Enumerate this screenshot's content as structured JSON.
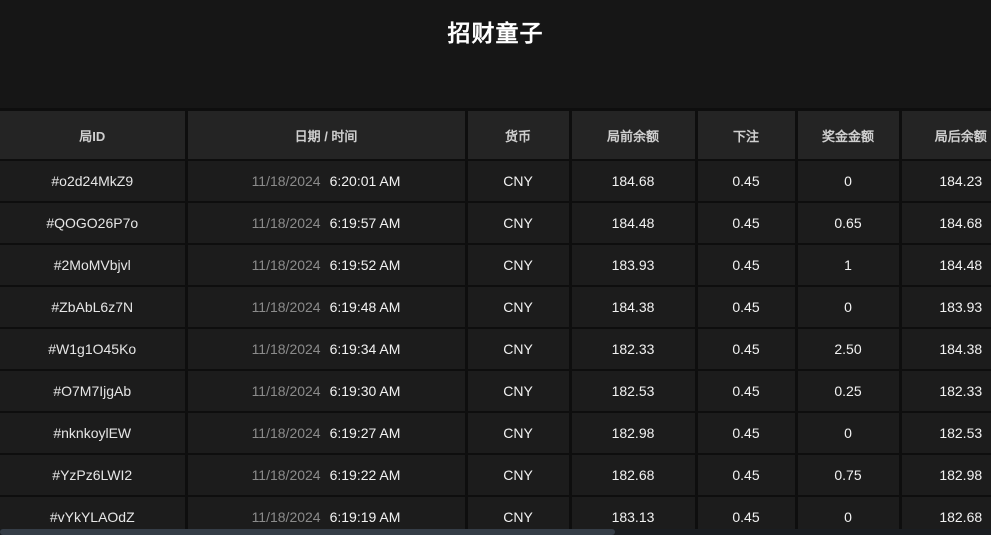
{
  "title": "招财童子",
  "table": {
    "columns": [
      {
        "key": "id",
        "label": "局ID"
      },
      {
        "key": "datetime",
        "label": "日期 / 时间"
      },
      {
        "key": "currency",
        "label": "货币"
      },
      {
        "key": "balance_before",
        "label": "局前余额"
      },
      {
        "key": "bet",
        "label": "下注"
      },
      {
        "key": "prize",
        "label": "奖金金额"
      },
      {
        "key": "balance_after",
        "label": "局后余额"
      }
    ],
    "rows": [
      {
        "id": "#o2d24MkZ9",
        "date": "11/18/2024",
        "time": "6:20:01 AM",
        "currency": "CNY",
        "balance_before": "184.68",
        "bet": "0.45",
        "prize": "0",
        "balance_after": "184.23"
      },
      {
        "id": "#QOGO26P7o",
        "date": "11/18/2024",
        "time": "6:19:57 AM",
        "currency": "CNY",
        "balance_before": "184.48",
        "bet": "0.45",
        "prize": "0.65",
        "balance_after": "184.68"
      },
      {
        "id": "#2MoMVbjvl",
        "date": "11/18/2024",
        "time": "6:19:52 AM",
        "currency": "CNY",
        "balance_before": "183.93",
        "bet": "0.45",
        "prize": "1",
        "balance_after": "184.48"
      },
      {
        "id": "#ZbAbL6z7N",
        "date": "11/18/2024",
        "time": "6:19:48 AM",
        "currency": "CNY",
        "balance_before": "184.38",
        "bet": "0.45",
        "prize": "0",
        "balance_after": "183.93"
      },
      {
        "id": "#W1g1O45Ko",
        "date": "11/18/2024",
        "time": "6:19:34 AM",
        "currency": "CNY",
        "balance_before": "182.33",
        "bet": "0.45",
        "prize": "2.50",
        "balance_after": "184.38"
      },
      {
        "id": "#O7M7IjgAb",
        "date": "11/18/2024",
        "time": "6:19:30 AM",
        "currency": "CNY",
        "balance_before": "182.53",
        "bet": "0.45",
        "prize": "0.25",
        "balance_after": "182.33"
      },
      {
        "id": "#nknkoylEW",
        "date": "11/18/2024",
        "time": "6:19:27 AM",
        "currency": "CNY",
        "balance_before": "182.98",
        "bet": "0.45",
        "prize": "0",
        "balance_after": "182.53"
      },
      {
        "id": "#YzPz6LWI2",
        "date": "11/18/2024",
        "time": "6:19:22 AM",
        "currency": "CNY",
        "balance_before": "182.68",
        "bet": "0.45",
        "prize": "0.75",
        "balance_after": "182.98"
      },
      {
        "id": "#vYkYLAOdZ",
        "date": "11/18/2024",
        "time": "6:19:19 AM",
        "currency": "CNY",
        "balance_before": "183.13",
        "bet": "0.45",
        "prize": "0",
        "balance_after": "182.68"
      }
    ]
  },
  "colors": {
    "page_background": "#161616",
    "header_background": "#242424",
    "row_background": "#1c1c1c",
    "separator": "#0e0e0e",
    "title_text": "#ffffff",
    "header_text": "#cfcfcf",
    "cell_text": "#f2f2f2",
    "date_text": "#8b8b8b",
    "scrollbar_thumb": "#353d47"
  },
  "scrollbar": {
    "orientation": "horizontal"
  }
}
